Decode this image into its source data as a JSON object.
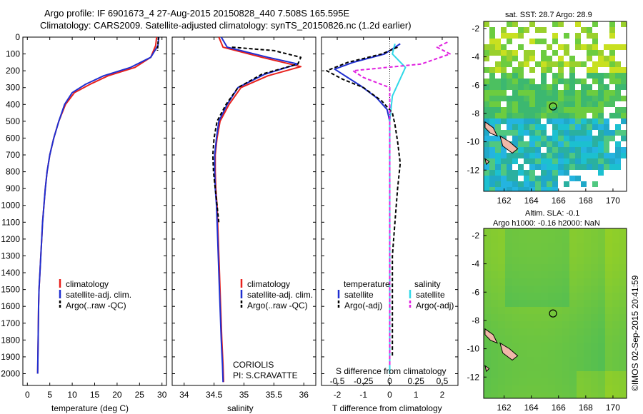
{
  "header": {
    "line1": "Argo profile: IF 6901673_4 27-Aug-2015 20150828_440 7.508S 165.595E",
    "line2": "Climatology: CARS2009. Satellite-adjusted climatology: synTS_20150826.nc (1.2d earlier)"
  },
  "colors": {
    "climatology": "#e8201c",
    "satellite": "#1f2fd0",
    "argo": "#000000",
    "sat_salinity": "#30d8e8",
    "argo_adj_salinity": "#e020e0",
    "land": "#f0b8a8"
  },
  "chart_data": [
    {
      "type": "line",
      "panel": "temperature",
      "xlabel": "temperature (deg C)",
      "ylabel": "",
      "xlim": [
        -1,
        31
      ],
      "ylim": [
        2070,
        0
      ],
      "xticks": [
        0,
        5,
        10,
        15,
        20,
        25,
        30
      ],
      "yticks": [
        0,
        100,
        200,
        300,
        400,
        500,
        600,
        700,
        800,
        900,
        1000,
        1100,
        1200,
        1300,
        1400,
        1500,
        1600,
        1700,
        1800,
        1900,
        2000
      ],
      "legend": [
        "climatology",
        "satellite-adj. clim.",
        "Argo(..raw -QC)"
      ],
      "series": [
        {
          "name": "climatology",
          "x": [
            28.8,
            28.6,
            27.5,
            24.0,
            18.0,
            14.0,
            10.5,
            8.5,
            7.0,
            5.9,
            5.0,
            4.4,
            4.0,
            3.7,
            3.4,
            3.2,
            3.0,
            2.8,
            2.6,
            2.5,
            2.4,
            2.3
          ],
          "y": [
            0,
            50,
            120,
            180,
            230,
            280,
            330,
            400,
            500,
            600,
            700,
            800,
            900,
            1000,
            1100,
            1200,
            1300,
            1400,
            1500,
            1600,
            1800,
            2000
          ]
        },
        {
          "name": "satellite-adj. clim.",
          "x": [
            29.3,
            29.1,
            27.5,
            23.0,
            17.0,
            13.0,
            10.0,
            8.3,
            7.0,
            5.9,
            5.0,
            4.4,
            4.0,
            3.7,
            3.4,
            3.2,
            3.0,
            2.8,
            2.6,
            2.5,
            2.4,
            2.3
          ],
          "y": [
            0,
            50,
            120,
            180,
            230,
            280,
            330,
            400,
            500,
            600,
            700,
            800,
            900,
            1000,
            1100,
            1200,
            1300,
            1400,
            1500,
            1600,
            1800,
            2000
          ]
        }
      ]
    },
    {
      "type": "line",
      "panel": "salinity",
      "xlabel": "salinity",
      "xlim": [
        33.8,
        36.2
      ],
      "ylim": [
        2070,
        0
      ],
      "xticks": [
        34,
        34.5,
        35,
        35.5,
        36
      ],
      "legend": [
        "climatology",
        "satellite-adj. clim.",
        "Argo(..raw -QC)"
      ],
      "annotations": [
        "CORIOLIS",
        "PI: S.CRAVATTE"
      ],
      "series": [
        {
          "name": "climatology",
          "x": [
            34.58,
            34.65,
            35.3,
            35.95,
            35.4,
            34.95,
            34.75,
            34.6,
            34.55,
            34.52,
            34.52,
            34.53,
            34.55,
            34.57,
            34.59,
            34.61,
            34.63,
            34.65,
            34.66
          ],
          "y": [
            0,
            60,
            120,
            175,
            230,
            300,
            400,
            500,
            600,
            700,
            800,
            900,
            1000,
            1200,
            1400,
            1600,
            1800,
            1950,
            2050
          ]
        },
        {
          "name": "satellite-adj. clim.",
          "x": [
            34.62,
            34.72,
            35.4,
            35.9,
            35.35,
            34.9,
            34.72,
            34.58,
            34.54,
            34.51,
            34.51,
            34.52,
            34.54,
            34.56,
            34.58,
            34.6,
            34.62,
            34.64,
            34.65
          ],
          "y": [
            0,
            60,
            120,
            160,
            220,
            300,
            400,
            500,
            600,
            700,
            800,
            900,
            1000,
            1200,
            1400,
            1600,
            1800,
            1950,
            2050
          ]
        }
      ]
    },
    {
      "type": "line",
      "panel": "difference",
      "xlabel": "T difference from climatology",
      "xlabel_top": "S difference from climatology",
      "xlim": [
        -2.6,
        2.6
      ],
      "ylim": [
        2070,
        0
      ],
      "xticks": [
        -2,
        -1,
        0,
        1,
        2
      ],
      "xticks_top": [
        -0.5,
        -0.25,
        0,
        0.25,
        0.5
      ],
      "legend_titles": [
        "temperature",
        "salinity"
      ],
      "legend": [
        "satellite",
        "Argo(-adj)",
        "satellite",
        "Argo(-adj)"
      ],
      "series": [
        {
          "name": "satellite",
          "x": [
            0.4,
            -0.2,
            -1.4,
            -2.1,
            -1.6,
            -1.1,
            -0.5,
            -0.1,
            0,
            0,
            0,
            0
          ],
          "y": [
            40,
            100,
            150,
            190,
            240,
            290,
            360,
            430,
            500,
            800,
            1500,
            2000
          ]
        },
        {
          "name": "satellite",
          "x": [
            0.2,
            0.1,
            0.6,
            0.1,
            0,
            0,
            0,
            0
          ],
          "y": [
            40,
            100,
            180,
            350,
            500,
            800,
            1500,
            2000
          ]
        }
      ]
    },
    {
      "type": "heatmap",
      "panel": "sst_map",
      "title": "sat. SST: 28.7 Argo: 28.9",
      "xlim": [
        160.5,
        171
      ],
      "ylim": [
        -13.5,
        -1.5
      ],
      "xticks": [
        162,
        164,
        166,
        168,
        170
      ],
      "yticks": [
        -2,
        -4,
        -6,
        -8,
        -10,
        -12
      ],
      "argo_position": [
        165.595,
        -7.508
      ]
    },
    {
      "type": "heatmap",
      "panel": "sla_map",
      "title": "Altim. SLA: -0.1",
      "subtitle": "Argo h1000: -0.16 h2000: NaN",
      "xlim": [
        160.5,
        171
      ],
      "ylim": [
        -13.5,
        -1.5
      ],
      "xticks": [
        162,
        164,
        166,
        168,
        170
      ],
      "yticks": [
        -2,
        -4,
        -6,
        -8,
        -10,
        -12
      ],
      "argo_position": [
        165.595,
        -7.508
      ]
    }
  ],
  "credit": "©IMOS 02-Sep-2015 20:41:59"
}
